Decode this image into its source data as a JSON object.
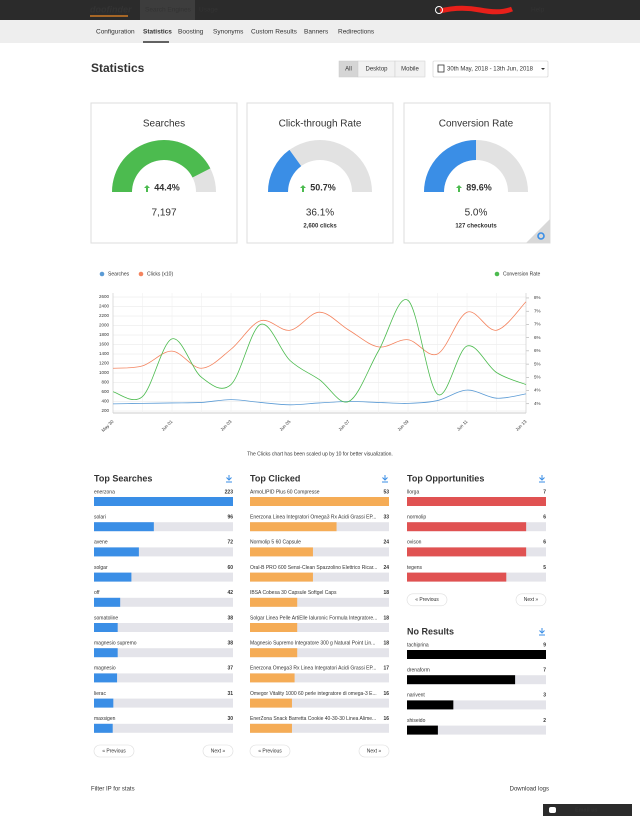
{
  "nav": {
    "logo": "doofinder",
    "items": [
      "Search Engines",
      "Usage"
    ],
    "help": "Help"
  },
  "subnav": [
    "Configuration",
    "Statistics",
    "Boosting",
    "Synonyms",
    "Custom Results",
    "Banners",
    "Redirections"
  ],
  "header": {
    "title": "Statistics",
    "devices": [
      "All",
      "Desktop",
      "Mobile"
    ],
    "date_range": "30th May, 2018 - 13th Jun, 2018"
  },
  "cards": [
    {
      "title": "Searches",
      "rate": "44.4%",
      "fill": 85,
      "color": "#4cbb4f",
      "value": "7,197"
    },
    {
      "title": "Click-through Rate",
      "rate": "50.7%",
      "fill": 30,
      "color": "#3a8ee6",
      "value": "36.1%",
      "detail": "2,600 clicks"
    },
    {
      "title": "Conversion Rate",
      "rate": "89.6%",
      "fill": 50,
      "color": "#3a8ee6",
      "value": "5.0%",
      "detail": "127 checkouts"
    }
  ],
  "chart_data": {
    "type": "line",
    "categories": [
      "May 30",
      null,
      "Jun 01",
      null,
      "Jun 03",
      null,
      "Jun 05",
      null,
      "Jun 07",
      null,
      "Jun 09",
      null,
      "Jun 11",
      null,
      "Jun 13"
    ],
    "series": [
      {
        "name": "Searches",
        "color": "#5b9bd5",
        "values": [
          350,
          360,
          370,
          380,
          440,
          380,
          330,
          370,
          400,
          380,
          360,
          420,
          640,
          470,
          560
        ]
      },
      {
        "name": "Clicks (x10)",
        "color": "#f4845f",
        "values": [
          1100,
          1150,
          1460,
          1100,
          1500,
          2100,
          1900,
          2280,
          1900,
          1550,
          1700,
          1400,
          2280,
          1900,
          2500
        ]
      },
      {
        "name": "Conversion Rate",
        "color": "#4cbb4f",
        "axis": "y2",
        "values": [
          4.1,
          3.9,
          6.3,
          4.7,
          4.4,
          6.9,
          5.4,
          4.6,
          3.7,
          5.8,
          7.9,
          4.0,
          6.0,
          4.9,
          4.4
        ]
      }
    ],
    "ylim": [
      200,
      2600
    ],
    "yticks": [
      200,
      400,
      600,
      800,
      1000,
      1200,
      1400,
      1600,
      1800,
      2000,
      2200,
      2400,
      2600
    ],
    "y2lim": [
      3.3,
      8.04
    ],
    "y2ticks": [
      {
        "value": 3.6,
        "label": "4%"
      },
      {
        "value": 4.15,
        "label": "4%"
      },
      {
        "value": 4.7,
        "label": "5%"
      },
      {
        "value": 5.25,
        "label": "5%"
      },
      {
        "value": 5.8,
        "label": "6%"
      },
      {
        "value": 6.35,
        "label": "6%"
      },
      {
        "value": 6.9,
        "label": "7%"
      },
      {
        "value": 7.45,
        "label": "7%"
      },
      {
        "value": 8.0,
        "label": "8%"
      }
    ],
    "grid": true,
    "caption": "The Clicks chart has been scaled up by 10 for better visualization."
  },
  "lists": [
    {
      "title": "Top Searches",
      "color": "#3a8ee6",
      "items": [
        {
          "label": "enerzona",
          "value": 223
        },
        {
          "label": "solari",
          "value": 96
        },
        {
          "label": "avene",
          "value": 72
        },
        {
          "label": "solgar",
          "value": 60
        },
        {
          "label": "off",
          "value": 42
        },
        {
          "label": "somatoline",
          "value": 38
        },
        {
          "label": "magnesio supremo",
          "value": 38
        },
        {
          "label": "magnesio",
          "value": 37
        },
        {
          "label": "lierac",
          "value": 31
        },
        {
          "label": "maxsigen",
          "value": 30
        }
      ],
      "pager": [
        "« Previous",
        "Next »"
      ]
    },
    {
      "title": "Top Clicked",
      "color": "#f5ac56",
      "links": true,
      "items": [
        {
          "label": "ArmoLIPID Plus 60 Compresse",
          "value": 53
        },
        {
          "label": "Enerzona Linea Integratori Omega3 Rx Acidi Grassi EP...",
          "value": 33
        },
        {
          "label": "Normolip 5 60 Capsule",
          "value": 24
        },
        {
          "label": "Oral-B PRO 600 Sensi-Clean Spazzolino Elettrico Ricar...",
          "value": 24
        },
        {
          "label": "IBSA Cobesa 30 Capsule Softgel Caps",
          "value": 18
        },
        {
          "label": "Solgar Linea Pelle ArtiElle Ialuronic Formula Integratore...",
          "value": 18
        },
        {
          "label": "Magnesio Supremo Integratore 300 g Natural Point Lin...",
          "value": 18
        },
        {
          "label": "Enerzona Omega3 Rx Linea Integratori Acidi Grassi EP...",
          "value": 17
        },
        {
          "label": "Omegor Vitality 1000 60 perle integratore di omega-3 E...",
          "value": 16
        },
        {
          "label": "EnerZona Snack Barretta Cookie 40-30-30 Linea Alime...",
          "value": 16
        }
      ],
      "pager": [
        "« Previous",
        "Next »"
      ]
    },
    {
      "title": "Top Opportunities",
      "color": "#e05252",
      "items": [
        {
          "label": "llorga",
          "value": 7
        },
        {
          "label": "normolip",
          "value": 6
        },
        {
          "label": "ovison",
          "value": 6
        },
        {
          "label": "tegens",
          "value": 5
        }
      ],
      "pager": [
        "« Previous",
        "Next »"
      ]
    },
    {
      "title": "No Results",
      "color": "#000000",
      "items": [
        {
          "label": "tachiprina",
          "value": 9
        },
        {
          "label": "drenaform",
          "value": 7
        },
        {
          "label": "narivent",
          "value": 3
        },
        {
          "label": "shiseido",
          "value": 2
        }
      ]
    }
  ],
  "footer": {
    "filter": "Filter IP for stats",
    "download": "Download logs"
  },
  "chat": "Email us"
}
